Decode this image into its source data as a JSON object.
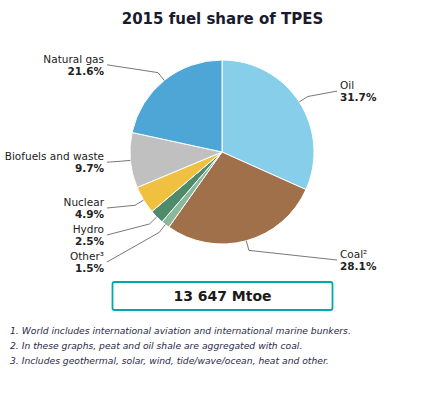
{
  "chart_data": {
    "type": "pie",
    "title": "2015 fuel share of TPES",
    "categories": [
      "Oil",
      "Coal²",
      "Other³",
      "Hydro",
      "Nuclear",
      "Biofuels and waste",
      "Natural gas"
    ],
    "values": [
      31.7,
      28.1,
      1.5,
      2.5,
      4.9,
      9.7,
      21.6
    ],
    "value_labels": [
      "31.7%",
      "28.1%",
      "1.5%",
      "2.5%",
      "4.9%",
      "9.7%",
      "21.6%"
    ],
    "colors": [
      "#87CEEB",
      "#A0704A",
      "#8AB89A",
      "#4E8B6B",
      "#F0C040",
      "#C0C0C0",
      "#4DA6D6"
    ],
    "data_labels": true,
    "annotations": [
      "13 647 Mtoe"
    ],
    "footnotes": [
      "1. World includes international aviation and international marine bunkers.",
      "2. In these graphs, peat and oil shale are aggregated with coal.",
      "3. Includes geothermal, solar, wind, tide/wave/ocean, heat and other."
    ]
  }
}
